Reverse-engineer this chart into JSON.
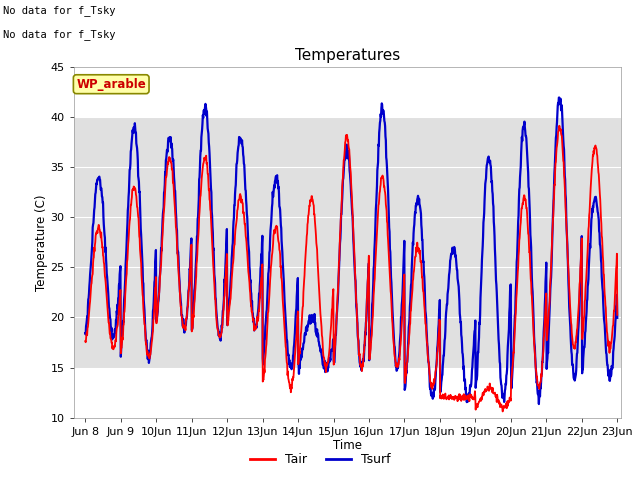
{
  "title": "Temperatures",
  "xlabel": "Time",
  "ylabel": "Temperature (C)",
  "ylim": [
    10,
    45
  ],
  "xlim_days": [
    7.67,
    23.1
  ],
  "tick_labels": [
    "Jun 8",
    "Jun 9",
    "Jun 10",
    "Jun 11",
    "Jun 12",
    "Jun 13",
    "Jun 14",
    "Jun 15",
    "Jun 16",
    "Jun 17",
    "Jun 18",
    "Jun 19",
    "Jun 20",
    "Jun 21",
    "Jun 22",
    "Jun 23"
  ],
  "tick_positions": [
    8,
    9,
    10,
    11,
    12,
    13,
    14,
    15,
    16,
    17,
    18,
    19,
    20,
    21,
    22,
    23
  ],
  "shade_ylim": [
    15,
    40
  ],
  "shade_color": "#e0e0e0",
  "bg_color": "#ffffff",
  "tair_color": "#ff0000",
  "tsurf_color": "#0000cc",
  "tair_lw": 1.3,
  "tsurf_lw": 1.6,
  "annotation1": "No data for f_Tsky",
  "annotation2": "No data for f_Tsky",
  "wp_label": "WP_arable",
  "wp_box_facecolor": "#ffffaa",
  "wp_box_edgecolor": "#888800",
  "legend_labels": [
    "Tair",
    "Tsurf"
  ],
  "yticks": [
    10,
    15,
    20,
    25,
    30,
    35,
    40,
    45
  ],
  "font_size": 9,
  "title_fontsize": 11
}
